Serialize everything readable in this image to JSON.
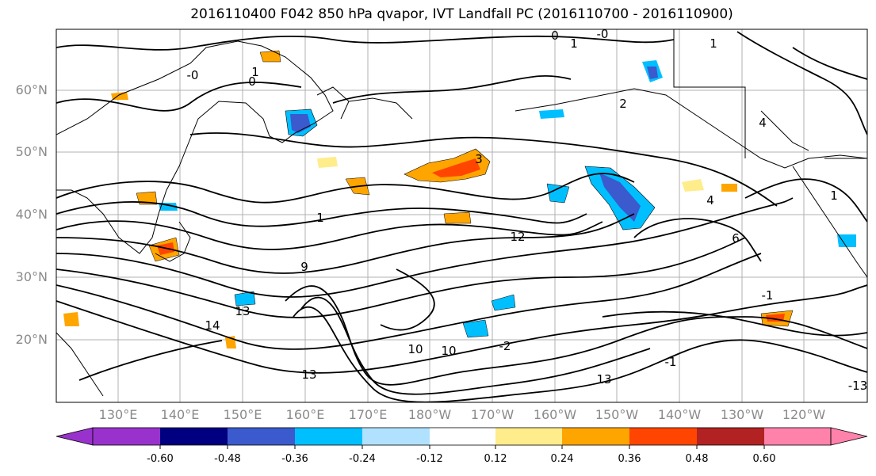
{
  "title": "2016110400 F042 850 hPa qvapor, IVT Landfall PC (2016110700 - 2016110900)",
  "lat_labels": [
    "60°N",
    "50°N",
    "40°N",
    "30°N",
    "20°N"
  ],
  "lon_labels": [
    "130°E",
    "140°E",
    "150°E",
    "160°E",
    "170°E",
    "180°W",
    "170°W",
    "160°W",
    "150°W",
    "140°W",
    "130°W",
    "120°W"
  ],
  "colorbar": {
    "colors": [
      "#9932cc",
      "#000080",
      "#3a5acd",
      "#00bfff",
      "#b0e2ff",
      "#ffffff",
      "#ffec8b",
      "#ffa500",
      "#ff4500",
      "#b22222",
      "#ff82ab"
    ],
    "tick_labels": [
      "-0.60",
      "-0.48",
      "-0.36",
      "-0.24",
      "-0.12",
      "0.12",
      "0.24",
      "0.36",
      "0.48",
      "0.60"
    ]
  },
  "contour_labels": [
    "0",
    "-0",
    "1",
    "0",
    "-0",
    "1",
    "2",
    "3",
    "1",
    "4",
    "4",
    "6",
    "14",
    "13",
    "13",
    "9",
    "10",
    "10",
    "12",
    "-2",
    "-1",
    "-13",
    "-1",
    "1",
    "1",
    "13"
  ]
}
